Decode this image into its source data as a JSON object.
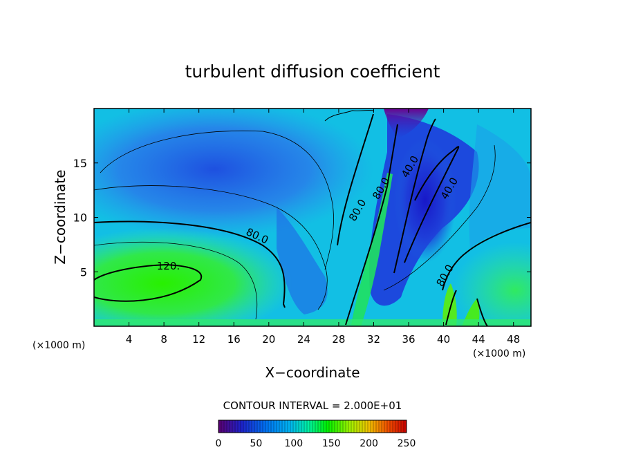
{
  "chart_data": {
    "type": "heatmap",
    "title": "turbulent diffusion coefficient",
    "xlabel": "X−coordinate",
    "ylabel": "Z−coordinate",
    "x_unit_left": "(×1000 m)",
    "x_unit_right": "(×1000 m)",
    "xlim": [
      0,
      50
    ],
    "ylim": [
      0,
      20
    ],
    "x_ticks": [
      4,
      8,
      12,
      16,
      20,
      24,
      28,
      32,
      36,
      40,
      44,
      48
    ],
    "y_ticks": [
      5,
      10,
      15
    ],
    "contour_interval_text": "CONTOUR INTERVAL = 2.000E+01",
    "contour_labels": [
      {
        "text": "120.",
        "x": 8.5,
        "z": 5.2
      },
      {
        "text": "80.0",
        "x": 18.5,
        "z": 8.0
      },
      {
        "text": "80.0",
        "x": 30.5,
        "z": 10.5
      },
      {
        "text": "80.0",
        "x": 33.2,
        "z": 12.5
      },
      {
        "text": "40.0",
        "x": 36.5,
        "z": 14.5
      },
      {
        "text": "40.0",
        "x": 41.0,
        "z": 12.5
      },
      {
        "text": "80.0",
        "x": 40.5,
        "z": 4.5
      }
    ],
    "colorbar": {
      "min": 0,
      "max": 250,
      "ticks": [
        0,
        50,
        100,
        150,
        200,
        250
      ],
      "colors": [
        "#5a0070",
        "#1e20c8",
        "#0070f0",
        "#00b4f0",
        "#00f0a0",
        "#00f000",
        "#a0f000",
        "#f0c000",
        "#f05000",
        "#c80000"
      ]
    },
    "field_colors": {
      "high": "#00f000",
      "mid": "#00c8e6",
      "low": "#1e46dc",
      "min": "#5a0078"
    }
  }
}
